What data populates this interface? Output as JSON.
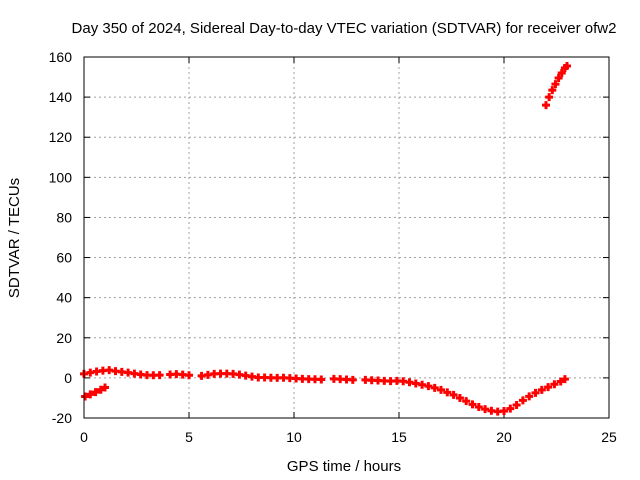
{
  "chart_data": {
    "type": "scatter",
    "title": "Day 350 of 2024, Sidereal Day-to-day VTEC variation (SDTVAR) for receiver ofw2",
    "xlabel": "GPS time / hours",
    "ylabel": "SDTVAR / TECUs",
    "xlim": [
      0,
      25
    ],
    "ylim": [
      -20,
      160
    ],
    "xticks": [
      0,
      5,
      10,
      15,
      20,
      25
    ],
    "yticks": [
      -20,
      0,
      20,
      40,
      60,
      80,
      100,
      120,
      140,
      160
    ],
    "grid": true,
    "legend": "none",
    "marker": "plus",
    "colors": {
      "series": "#ff0000",
      "grid": "#a0a0a0",
      "axis": "#000000"
    },
    "series": [
      {
        "name": "SDTVAR",
        "points": [
          [
            0.0,
            2.0
          ],
          [
            0.3,
            2.6
          ],
          [
            0.6,
            3.2
          ],
          [
            0.9,
            3.6
          ],
          [
            1.2,
            3.9
          ],
          [
            1.5,
            3.4
          ],
          [
            1.8,
            3.0
          ],
          [
            2.1,
            2.6
          ],
          [
            2.4,
            2.1
          ],
          [
            2.7,
            1.7
          ],
          [
            3.0,
            1.4
          ],
          [
            3.3,
            1.3
          ],
          [
            3.6,
            1.4
          ],
          [
            4.1,
            1.7
          ],
          [
            4.4,
            1.9
          ],
          [
            4.7,
            1.6
          ],
          [
            5.0,
            1.3
          ],
          [
            5.6,
            1.0
          ],
          [
            5.9,
            1.5
          ],
          [
            6.2,
            2.0
          ],
          [
            6.5,
            2.1
          ],
          [
            6.8,
            2.1
          ],
          [
            7.1,
            2.0
          ],
          [
            7.4,
            1.6
          ],
          [
            7.7,
            1.1
          ],
          [
            8.0,
            0.6
          ],
          [
            8.3,
            0.2
          ],
          [
            8.6,
            0.2
          ],
          [
            8.9,
            0.1
          ],
          [
            9.2,
            0.0
          ],
          [
            9.5,
            0.1
          ],
          [
            9.8,
            -0.1
          ],
          [
            10.1,
            -0.3
          ],
          [
            10.4,
            -0.5
          ],
          [
            10.7,
            -0.6
          ],
          [
            11.0,
            -0.7
          ],
          [
            11.3,
            -0.8
          ],
          [
            11.9,
            -0.5
          ],
          [
            12.2,
            -0.6
          ],
          [
            12.5,
            -0.8
          ],
          [
            12.8,
            -1.0
          ],
          [
            13.4,
            -1.0
          ],
          [
            13.7,
            -1.2
          ],
          [
            14.0,
            -1.3
          ],
          [
            14.3,
            -1.5
          ],
          [
            14.6,
            -1.6
          ],
          [
            14.9,
            -1.5
          ],
          [
            15.2,
            -1.7
          ],
          [
            15.5,
            -2.2
          ],
          [
            15.8,
            -2.8
          ],
          [
            16.1,
            -3.4
          ],
          [
            16.4,
            -4.1
          ],
          [
            16.7,
            -5.0
          ],
          [
            17.0,
            -6.0
          ],
          [
            17.3,
            -7.2
          ],
          [
            17.6,
            -8.5
          ],
          [
            17.9,
            -10.0
          ],
          [
            18.2,
            -11.6
          ],
          [
            18.5,
            -13.2
          ],
          [
            18.8,
            -14.5
          ],
          [
            19.1,
            -15.6
          ],
          [
            19.4,
            -16.4
          ],
          [
            19.7,
            -16.8
          ],
          [
            20.0,
            -16.5
          ],
          [
            20.3,
            -15.3
          ],
          [
            20.6,
            -13.5
          ],
          [
            20.9,
            -11.2
          ],
          [
            21.2,
            -9.2
          ],
          [
            21.5,
            -7.5
          ],
          [
            21.8,
            -6.0
          ],
          [
            22.1,
            -4.6
          ],
          [
            22.4,
            -3.2
          ],
          [
            22.7,
            -1.8
          ],
          [
            22.9,
            -0.6
          ],
          [
            0.05,
            -9.3
          ],
          [
            0.3,
            -8.2
          ],
          [
            0.55,
            -7.1
          ],
          [
            0.8,
            -5.9
          ],
          [
            1.0,
            -4.8
          ],
          [
            22.0,
            136.0
          ],
          [
            22.15,
            140.0
          ],
          [
            22.3,
            143.5
          ],
          [
            22.45,
            146.5
          ],
          [
            22.6,
            149.5
          ],
          [
            22.75,
            152.0
          ],
          [
            22.9,
            154.5
          ],
          [
            23.0,
            155.5
          ]
        ]
      }
    ]
  }
}
